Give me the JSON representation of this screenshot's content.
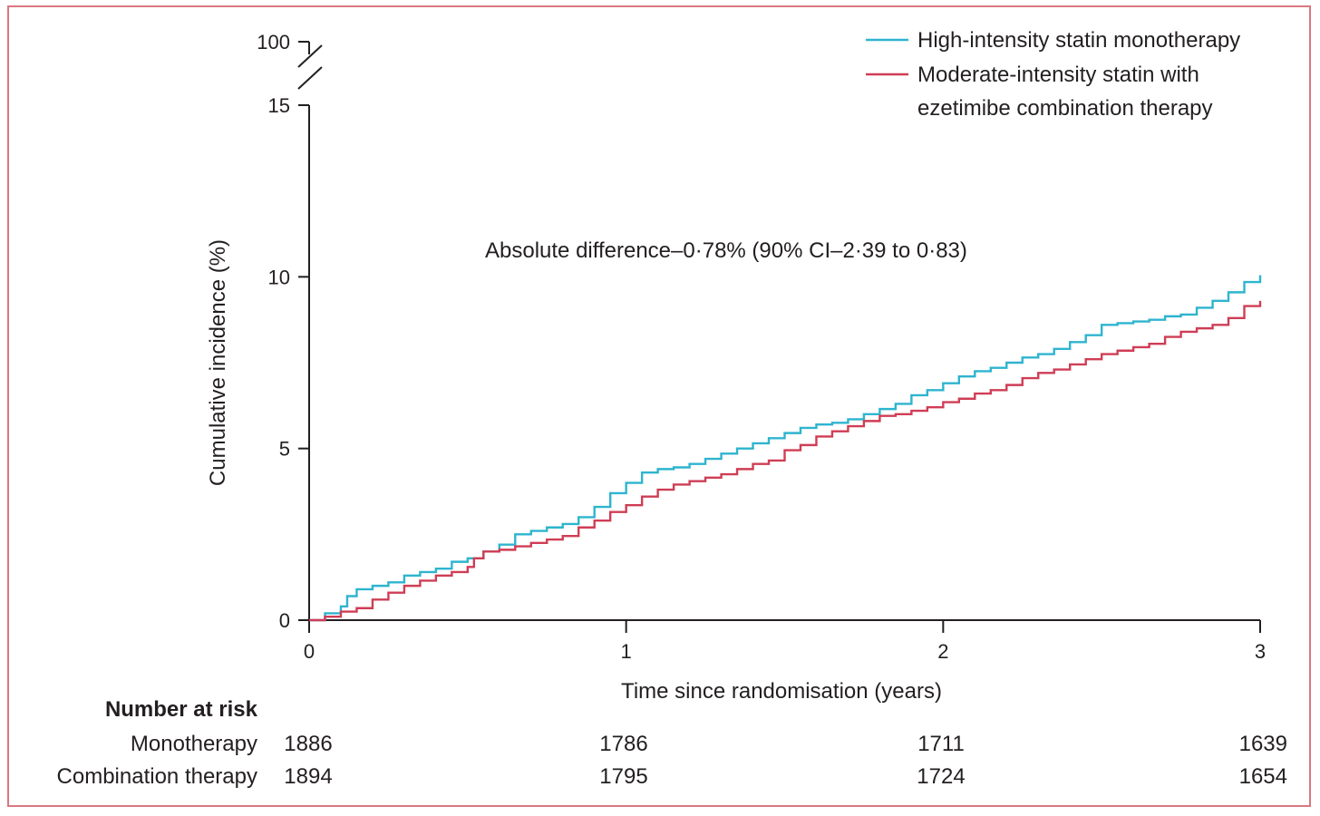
{
  "chart_data": {
    "type": "line",
    "title": "",
    "xlabel": "Time since randomisation (years)",
    "ylabel": "Cumulative incidence (%)",
    "xlim": [
      0,
      3
    ],
    "ylim": [
      0,
      15
    ],
    "y_break": true,
    "y_break_top_label": "100",
    "xticks": [
      "0",
      "1",
      "2",
      "3"
    ],
    "yticks": [
      "0",
      "5",
      "10",
      "15"
    ],
    "grid": false,
    "legend_position": "top-right",
    "annotation": "Absolute difference–0·78% (90% CI–2·39 to 0·83)",
    "series": [
      {
        "name": "High-intensity statin monotherapy",
        "color": "#2eb4cf",
        "x": [
          0,
          0.05,
          0.1,
          0.12,
          0.15,
          0.2,
          0.25,
          0.3,
          0.35,
          0.4,
          0.45,
          0.5,
          0.55,
          0.6,
          0.65,
          0.7,
          0.75,
          0.8,
          0.85,
          0.9,
          0.95,
          1.0,
          1.05,
          1.1,
          1.15,
          1.2,
          1.25,
          1.3,
          1.35,
          1.4,
          1.45,
          1.5,
          1.55,
          1.6,
          1.65,
          1.7,
          1.75,
          1.8,
          1.85,
          1.9,
          1.95,
          2.0,
          2.05,
          2.1,
          2.15,
          2.2,
          2.25,
          2.3,
          2.35,
          2.4,
          2.45,
          2.5,
          2.55,
          2.6,
          2.65,
          2.7,
          2.75,
          2.8,
          2.85,
          2.9,
          2.95,
          3.0
        ],
        "y": [
          0,
          0.2,
          0.4,
          0.7,
          0.9,
          1.0,
          1.1,
          1.3,
          1.4,
          1.5,
          1.7,
          1.8,
          2.0,
          2.2,
          2.5,
          2.6,
          2.7,
          2.8,
          3.0,
          3.3,
          3.7,
          4.0,
          4.3,
          4.4,
          4.45,
          4.55,
          4.7,
          4.85,
          5.0,
          5.15,
          5.3,
          5.45,
          5.6,
          5.7,
          5.75,
          5.85,
          6.0,
          6.15,
          6.3,
          6.55,
          6.7,
          6.9,
          7.1,
          7.25,
          7.35,
          7.5,
          7.65,
          7.75,
          7.9,
          8.1,
          8.3,
          8.6,
          8.65,
          8.7,
          8.75,
          8.85,
          8.9,
          9.1,
          9.3,
          9.55,
          9.85,
          10.05
        ]
      },
      {
        "name": "Moderate-intensity statin with ezetimibe combination therapy",
        "color": "#cf3d55",
        "x": [
          0,
          0.05,
          0.1,
          0.15,
          0.2,
          0.25,
          0.3,
          0.35,
          0.4,
          0.45,
          0.5,
          0.52,
          0.55,
          0.6,
          0.65,
          0.7,
          0.75,
          0.8,
          0.85,
          0.9,
          0.95,
          1.0,
          1.05,
          1.1,
          1.15,
          1.2,
          1.25,
          1.3,
          1.35,
          1.4,
          1.45,
          1.5,
          1.55,
          1.6,
          1.65,
          1.7,
          1.75,
          1.8,
          1.85,
          1.9,
          1.95,
          2.0,
          2.05,
          2.1,
          2.15,
          2.2,
          2.25,
          2.3,
          2.35,
          2.4,
          2.45,
          2.5,
          2.55,
          2.6,
          2.65,
          2.7,
          2.75,
          2.8,
          2.85,
          2.9,
          2.95,
          3.0
        ],
        "y": [
          0,
          0.1,
          0.25,
          0.35,
          0.6,
          0.8,
          1.0,
          1.15,
          1.3,
          1.4,
          1.55,
          1.8,
          2.0,
          2.05,
          2.15,
          2.25,
          2.35,
          2.45,
          2.7,
          2.9,
          3.15,
          3.35,
          3.6,
          3.8,
          3.95,
          4.05,
          4.15,
          4.25,
          4.4,
          4.55,
          4.65,
          4.95,
          5.1,
          5.35,
          5.5,
          5.65,
          5.8,
          5.95,
          6.0,
          6.1,
          6.2,
          6.35,
          6.45,
          6.6,
          6.7,
          6.85,
          7.05,
          7.2,
          7.3,
          7.45,
          7.6,
          7.75,
          7.85,
          7.95,
          8.05,
          8.25,
          8.4,
          8.5,
          8.6,
          8.8,
          9.15,
          9.3
        ]
      }
    ],
    "risk_table": {
      "title": "Number at risk",
      "rows": [
        {
          "label": "Monotherapy",
          "values": [
            "1886",
            "1786",
            "1711",
            "1639"
          ]
        },
        {
          "label": "Combination therapy",
          "values": [
            "1894",
            "1795",
            "1724",
            "1654"
          ]
        }
      ]
    }
  }
}
